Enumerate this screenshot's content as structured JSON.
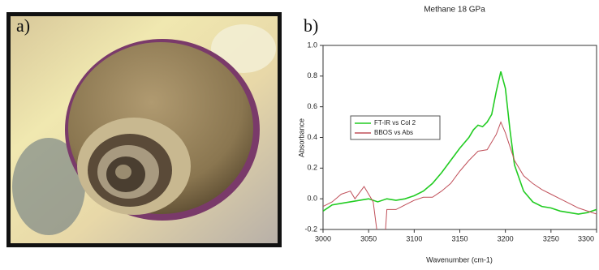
{
  "chart_data": {
    "type": "line",
    "title": "Methane 18 GPa",
    "panel_labels": [
      "a)",
      "b)"
    ],
    "x_label": "Wavenumber (cm-1)",
    "y_label": "Absorbance",
    "xlim": [
      3000,
      3300
    ],
    "xticks": [
      3000,
      3050,
      3100,
      3150,
      3200,
      3250,
      3300
    ],
    "ylim": [
      -0.2,
      1.0
    ],
    "yticks": [
      -0.2,
      {
        "value": 0,
        "label": "0.0"
      },
      0.2,
      0.4,
      0.6,
      0.8,
      {
        "value": 1,
        "label": "1.0"
      }
    ],
    "series": [
      {
        "name": "FT-IR vs Col 2",
        "color": "#22cc22",
        "x": [
          3000,
          3010,
          3020,
          3030,
          3040,
          3050,
          3060,
          3070,
          3080,
          3090,
          3100,
          3110,
          3120,
          3130,
          3140,
          3150,
          3160,
          3165,
          3170,
          3175,
          3180,
          3185,
          3190,
          3195,
          3200,
          3205,
          3210,
          3220,
          3230,
          3240,
          3250,
          3260,
          3270,
          3280,
          3290,
          3300
        ],
        "values": [
          -0.08,
          -0.04,
          -0.03,
          -0.02,
          -0.01,
          0.0,
          -0.02,
          0.0,
          -0.01,
          0.0,
          0.02,
          0.05,
          0.1,
          0.17,
          0.25,
          0.33,
          0.4,
          0.45,
          0.48,
          0.47,
          0.5,
          0.55,
          0.7,
          0.83,
          0.72,
          0.45,
          0.22,
          0.05,
          -0.02,
          -0.05,
          -0.06,
          -0.08,
          -0.09,
          -0.1,
          -0.09,
          -0.07
        ]
      },
      {
        "name": "BBOS vs Abs",
        "color": "#c0505a",
        "x": [
          3000,
          3010,
          3020,
          3030,
          3035,
          3045,
          3050,
          3055,
          3060,
          3068,
          3070,
          3080,
          3090,
          3100,
          3110,
          3120,
          3130,
          3140,
          3150,
          3160,
          3170,
          3180,
          3190,
          3195,
          3200,
          3210,
          3220,
          3230,
          3240,
          3250,
          3260,
          3270,
          3280,
          3300
        ],
        "values": [
          -0.05,
          -0.02,
          0.03,
          0.05,
          0.0,
          0.08,
          0.03,
          -0.02,
          -0.25,
          -0.25,
          -0.07,
          -0.07,
          -0.04,
          -0.01,
          0.01,
          0.01,
          0.05,
          0.1,
          0.18,
          0.25,
          0.31,
          0.32,
          0.42,
          0.5,
          0.43,
          0.25,
          0.15,
          0.1,
          0.06,
          0.03,
          0.0,
          -0.03,
          -0.06,
          -0.1
        ]
      }
    ]
  }
}
